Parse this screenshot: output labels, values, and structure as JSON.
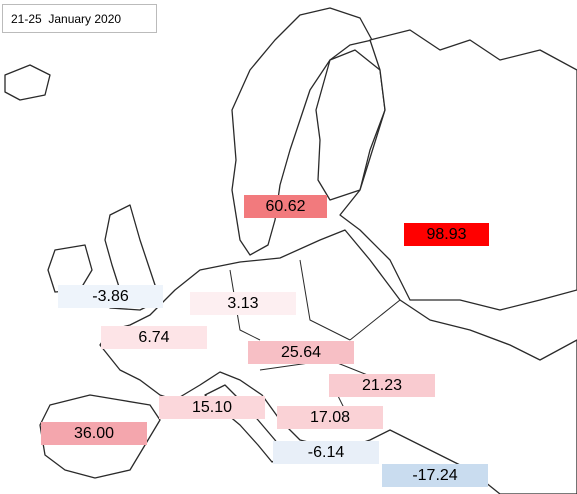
{
  "title": "21-25  January 2020",
  "regions": [
    {
      "label": "60.62",
      "color": "#f27a7d"
    },
    {
      "label": "98.93",
      "color": "#ff0000"
    },
    {
      "label": "-3.86",
      "color": "#eef4fb"
    },
    {
      "label": "3.13",
      "color": "#fdeff1"
    },
    {
      "label": "6.74",
      "color": "#fde4e7"
    },
    {
      "label": "25.64",
      "color": "#f7bfc5"
    },
    {
      "label": "21.23",
      "color": "#f9cbd0"
    },
    {
      "label": "15.10",
      "color": "#fbd7db"
    },
    {
      "label": "17.08",
      "color": "#fad2d6"
    },
    {
      "label": "36.00",
      "color": "#f4a6ad"
    },
    {
      "label": "-6.14",
      "color": "#e8eff8"
    },
    {
      "label": "-17.24",
      "color": "#c9dcef"
    }
  ]
}
